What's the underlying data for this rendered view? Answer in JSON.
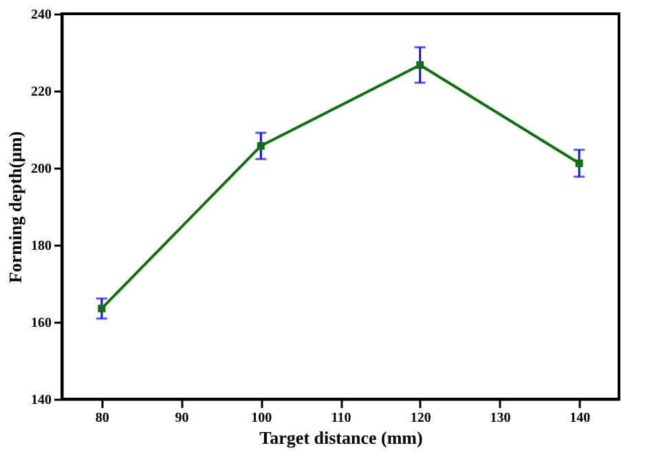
{
  "chart_data": {
    "type": "line",
    "xlabel": "Target distance (mm)",
    "ylabel": "Forming depth(μm)",
    "x": [
      80,
      100,
      120,
      140
    ],
    "series": [
      {
        "color": "#107010",
        "values": [
          163.5,
          205.7,
          226.7,
          201.2
        ],
        "errors": [
          2.6,
          3.4,
          4.6,
          3.5
        ]
      }
    ],
    "xlim": [
      75,
      145
    ],
    "xticks": [
      80,
      90,
      100,
      110,
      120,
      130,
      140
    ],
    "ylim": [
      140,
      240
    ],
    "yticks": [
      140,
      160,
      180,
      200,
      220,
      240
    ],
    "grid": false,
    "marker": "square",
    "line_style": "solid"
  }
}
